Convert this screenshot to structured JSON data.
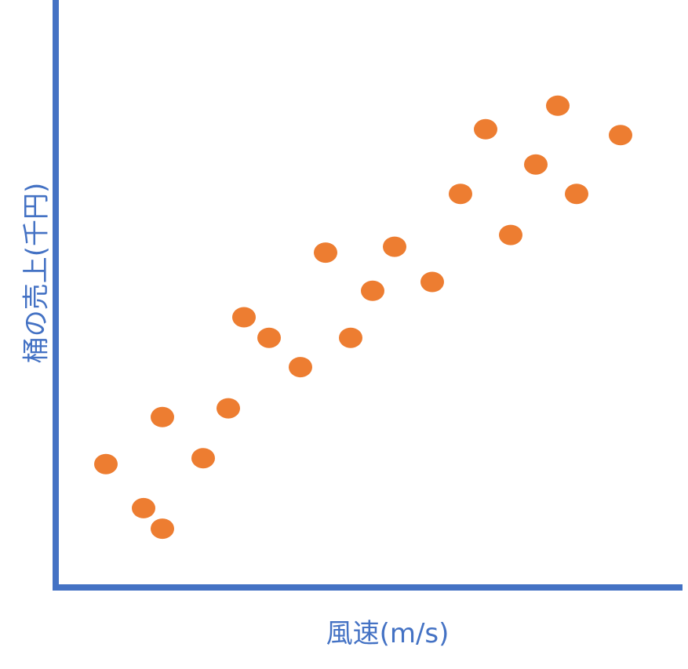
{
  "chart_data": {
    "type": "scatter",
    "title": "",
    "xlabel": "風速(m/s)",
    "ylabel": "桶の売上(千円)",
    "xlim": [
      0,
      100
    ],
    "ylim": [
      0,
      100
    ],
    "grid": false,
    "ticks": false,
    "series": [
      {
        "color": "#ed7d31",
        "points": [
          {
            "x": 8,
            "y": 21
          },
          {
            "x": 14,
            "y": 13.5
          },
          {
            "x": 17,
            "y": 10
          },
          {
            "x": 17,
            "y": 29
          },
          {
            "x": 23.5,
            "y": 22
          },
          {
            "x": 27.5,
            "y": 30.5
          },
          {
            "x": 30,
            "y": 46
          },
          {
            "x": 34,
            "y": 42.5
          },
          {
            "x": 39,
            "y": 37.5
          },
          {
            "x": 43,
            "y": 57
          },
          {
            "x": 47,
            "y": 42.5
          },
          {
            "x": 50.5,
            "y": 50.5
          },
          {
            "x": 54,
            "y": 58
          },
          {
            "x": 60,
            "y": 52
          },
          {
            "x": 64.5,
            "y": 67
          },
          {
            "x": 68.5,
            "y": 78
          },
          {
            "x": 72.5,
            "y": 60
          },
          {
            "x": 76.5,
            "y": 72
          },
          {
            "x": 80,
            "y": 82
          },
          {
            "x": 83,
            "y": 67
          },
          {
            "x": 90,
            "y": 77
          }
        ]
      }
    ]
  },
  "colors": {
    "axis": "#4472c4",
    "marker": "#ed7d31",
    "label": "#4472c4"
  }
}
